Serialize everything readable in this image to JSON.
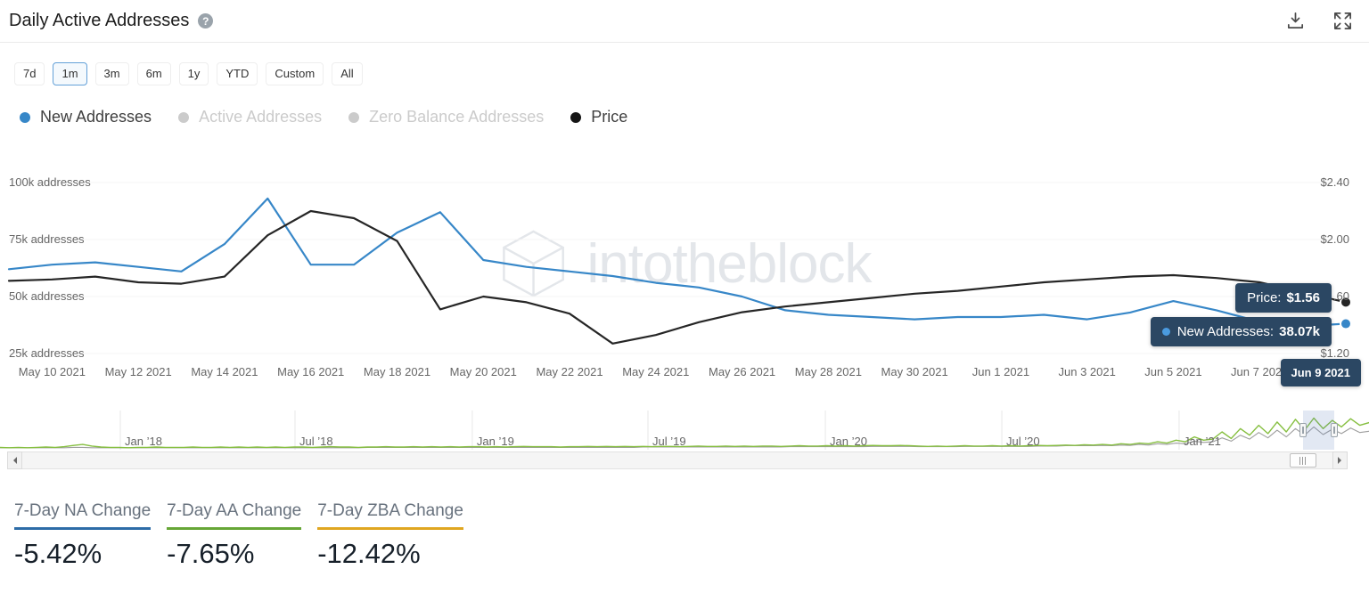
{
  "header": {
    "title": "Daily Active Addresses",
    "help_icon": "?",
    "icons": {
      "help": "question-mark-circle",
      "download": "download-tray",
      "fullscreen": "expand-corners"
    }
  },
  "range": {
    "options": [
      "7d",
      "1m",
      "3m",
      "6m",
      "1y",
      "YTD",
      "Custom",
      "All"
    ],
    "selected": "1m"
  },
  "legend": {
    "items": [
      {
        "label": "New Addresses",
        "color": "#3787c8",
        "active": true
      },
      {
        "label": "Active Addresses",
        "color": "#cbcbcb",
        "active": false
      },
      {
        "label": "Zero Balance Addresses",
        "color": "#cbcbcb",
        "active": false
      },
      {
        "label": "Price",
        "color": "#151515",
        "active": true
      }
    ]
  },
  "tooltip": {
    "date": "Jun 9 2021",
    "rows": [
      {
        "label": "Price:",
        "value": "$1.56"
      },
      {
        "label": "New Addresses:",
        "value": "38.07k",
        "dot_color": "#4a9be0"
      }
    ]
  },
  "chart_data": {
    "type": "line",
    "watermark": "intotheblock",
    "x_dates": [
      "May 9 2021",
      "May 10 2021",
      "May 11 2021",
      "May 12 2021",
      "May 13 2021",
      "May 14 2021",
      "May 15 2021",
      "May 16 2021",
      "May 17 2021",
      "May 18 2021",
      "May 19 2021",
      "May 20 2021",
      "May 21 2021",
      "May 22 2021",
      "May 23 2021",
      "May 24 2021",
      "May 25 2021",
      "May 26 2021",
      "May 27 2021",
      "May 28 2021",
      "May 29 2021",
      "May 30 2021",
      "May 31 2021",
      "Jun 1 2021",
      "Jun 2 2021",
      "Jun 3 2021",
      "Jun 4 2021",
      "Jun 5 2021",
      "Jun 6 2021",
      "Jun 7 2021",
      "Jun 8 2021",
      "Jun 9 2021"
    ],
    "x_tick_labels": [
      "May 10 2021",
      "May 12 2021",
      "May 14 2021",
      "May 16 2021",
      "May 18 2021",
      "May 20 2021",
      "May 22 2021",
      "May 24 2021",
      "May 26 2021",
      "May 28 2021",
      "May 30 2021",
      "Jun 1 2021",
      "Jun 3 2021",
      "Jun 5 2021",
      "Jun 7 2021"
    ],
    "y_axis_left": {
      "labels": [
        "100k addresses",
        "75k addresses",
        "50k addresses",
        "25k addresses"
      ],
      "range_k": [
        25,
        100
      ]
    },
    "y_axis_right": {
      "labels": [
        "$2.40",
        "$2.00",
        "$1.60",
        "$1.20"
      ],
      "range_usd": [
        1.2,
        2.4
      ]
    },
    "series": [
      {
        "name": "New Addresses",
        "unit": "k addresses",
        "color": "#3787c8",
        "values": [
          62,
          64,
          65,
          63,
          61,
          73,
          93,
          64,
          64,
          78,
          87,
          66,
          63,
          61,
          59,
          56,
          54,
          50,
          44,
          42,
          41,
          40,
          41,
          41,
          42,
          40,
          43,
          48,
          44,
          39,
          37,
          38.07
        ]
      },
      {
        "name": "Price",
        "unit": "USD",
        "color": "#262626",
        "values": [
          1.71,
          1.72,
          1.74,
          1.7,
          1.69,
          1.74,
          2.03,
          2.2,
          2.15,
          1.99,
          1.51,
          1.6,
          1.56,
          1.48,
          1.27,
          1.33,
          1.42,
          1.49,
          1.53,
          1.56,
          1.59,
          1.62,
          1.64,
          1.67,
          1.7,
          1.72,
          1.74,
          1.75,
          1.73,
          1.7,
          1.63,
          1.56
        ]
      }
    ]
  },
  "navigator": {
    "tick_labels": [
      {
        "text": "Jan ’18",
        "pos": 0.0879
      },
      {
        "text": "Jul ’18",
        "pos": 0.2155
      },
      {
        "text": "Jan ’19",
        "pos": 0.345
      },
      {
        "text": "Jul ’19",
        "pos": 0.4733
      },
      {
        "text": "Jan ’20",
        "pos": 0.6029
      },
      {
        "text": "Jul ’20",
        "pos": 0.7318
      },
      {
        "text": "Jan ’21",
        "pos": 0.8613
      }
    ],
    "selection": {
      "start": 0.9515,
      "end": 0.9743
    },
    "series": [
      {
        "name": "new-addresses-history",
        "color": "#86bf40",
        "width": 1.4,
        "values": [
          3,
          2,
          3,
          2,
          3,
          4,
          3,
          5,
          9,
          12,
          7,
          4,
          3,
          3,
          2,
          3,
          3,
          4,
          3,
          3,
          3,
          4,
          3,
          3,
          4,
          3,
          4,
          3,
          4,
          3,
          4,
          3,
          4,
          4,
          3,
          4,
          5,
          4,
          4,
          3,
          4,
          4,
          5,
          4,
          4,
          5,
          4,
          5,
          4,
          5,
          4,
          5,
          5,
          4,
          5,
          4,
          5,
          6,
          5,
          5,
          5,
          4,
          5,
          5,
          6,
          5,
          6,
          5,
          6,
          5,
          6,
          5,
          6,
          6,
          5,
          6,
          7,
          6,
          6,
          7,
          6,
          7,
          6,
          7,
          7,
          6,
          7,
          8,
          7,
          7,
          8,
          7,
          8,
          7,
          8,
          9,
          8,
          8,
          9,
          8,
          7,
          6,
          7,
          6,
          7,
          8,
          7,
          7,
          8,
          7,
          8,
          7,
          8,
          9,
          8,
          9,
          10,
          9,
          11,
          10,
          12,
          10,
          14,
          12,
          16,
          14,
          20,
          16,
          25,
          20,
          35,
          25,
          28,
          50,
          30,
          60,
          40,
          70,
          45,
          80,
          50,
          88,
          55,
          92,
          60,
          85,
          65,
          90,
          70,
          78
        ]
      },
      {
        "name": "price-history",
        "color": "#9e9e9e",
        "width": 1.1,
        "values": [
          2,
          2,
          2,
          2,
          2,
          2,
          2,
          2,
          3,
          3,
          2,
          2,
          2,
          2,
          2,
          2,
          2,
          2,
          2,
          2,
          2,
          2,
          2,
          2,
          2,
          2,
          2,
          2,
          2,
          2,
          2,
          2,
          2,
          2,
          2,
          2,
          2,
          2,
          2,
          2,
          3,
          3,
          3,
          3,
          3,
          3,
          3,
          3,
          3,
          3,
          3,
          3,
          3,
          3,
          3,
          3,
          3,
          3,
          3,
          3,
          3,
          3,
          3,
          3,
          3,
          3,
          3,
          3,
          3,
          3,
          4,
          4,
          4,
          4,
          4,
          4,
          4,
          4,
          4,
          4,
          4,
          4,
          4,
          4,
          4,
          4,
          5,
          5,
          5,
          5,
          5,
          5,
          5,
          5,
          5,
          6,
          6,
          6,
          6,
          6,
          5,
          5,
          5,
          5,
          5,
          6,
          6,
          6,
          6,
          6,
          6,
          6,
          6,
          7,
          7,
          7,
          8,
          8,
          8,
          8,
          9,
          8,
          10,
          9,
          12,
          10,
          14,
          12,
          16,
          14,
          22,
          18,
          20,
          32,
          22,
          40,
          28,
          48,
          32,
          55,
          35,
          60,
          40,
          65,
          42,
          58,
          45,
          62,
          48,
          52
        ]
      }
    ]
  },
  "stats": [
    {
      "label": "7-Day NA Change",
      "value": "-5.42%",
      "underline_color": "#2d6ca7"
    },
    {
      "label": "7-Day AA Change",
      "value": "-7.65%",
      "underline_color": "#66a636"
    },
    {
      "label": "7-Day ZBA Change",
      "value": "-12.42%",
      "underline_color": "#e0a620"
    }
  ]
}
